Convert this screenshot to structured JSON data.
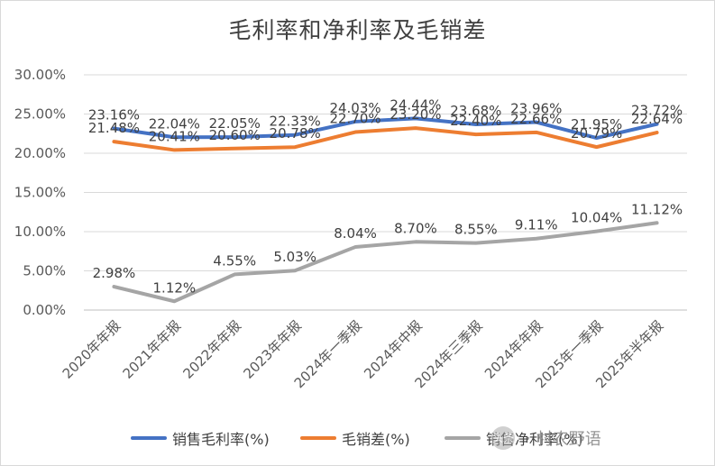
{
  "chart_data": {
    "type": "line",
    "title": "毛利率和净利率及毛销差",
    "categories": [
      "2020年年报",
      "2021年年报",
      "2022年年报",
      "2023年年报",
      "2024年一季报",
      "2024年中报",
      "2024年三季报",
      "2024年年报",
      "2025年一季报",
      "2025年半年报"
    ],
    "y_ticks": [
      "0.00%",
      "5.00%",
      "10.00%",
      "15.00%",
      "20.00%",
      "25.00%",
      "30.00%"
    ],
    "ylim": [
      0,
      30
    ],
    "grid": true,
    "legend_position": "bottom",
    "series": [
      {
        "name": "销售毛利率(%)",
        "color": "#4472c4",
        "values": [
          23.16,
          22.04,
          22.05,
          22.33,
          24.03,
          24.44,
          23.68,
          23.96,
          21.95,
          23.72
        ],
        "labels": [
          "23.16%",
          "22.04%",
          "22.05%",
          "22.33%",
          "24.03%",
          "24.44%",
          "23.68%",
          "23.96%",
          "21.95%",
          "23.72%"
        ]
      },
      {
        "name": "毛销差(%)",
        "color": "#ed7d31",
        "values": [
          21.48,
          20.41,
          20.6,
          20.78,
          22.7,
          23.2,
          22.4,
          22.66,
          20.79,
          22.64
        ],
        "labels": [
          "21.48%",
          "20.41%",
          "20.60%",
          "20.78%",
          "22.70%",
          "23.20%",
          "22.40%",
          "22.66%",
          "20.79%",
          "22.64%"
        ]
      },
      {
        "name": "销售净利率(%)",
        "color": "#a5a5a5",
        "values": [
          2.98,
          1.12,
          4.55,
          5.03,
          8.04,
          8.7,
          8.55,
          9.11,
          10.04,
          11.12
        ],
        "labels": [
          "2.98%",
          "1.12%",
          "4.55%",
          "5.03%",
          "8.04%",
          "8.70%",
          "8.55%",
          "9.11%",
          "10.04%",
          "11.12%"
        ]
      }
    ]
  },
  "watermark": {
    "logo_text": "头条",
    "name": "村农野语",
    "separator": "·"
  }
}
